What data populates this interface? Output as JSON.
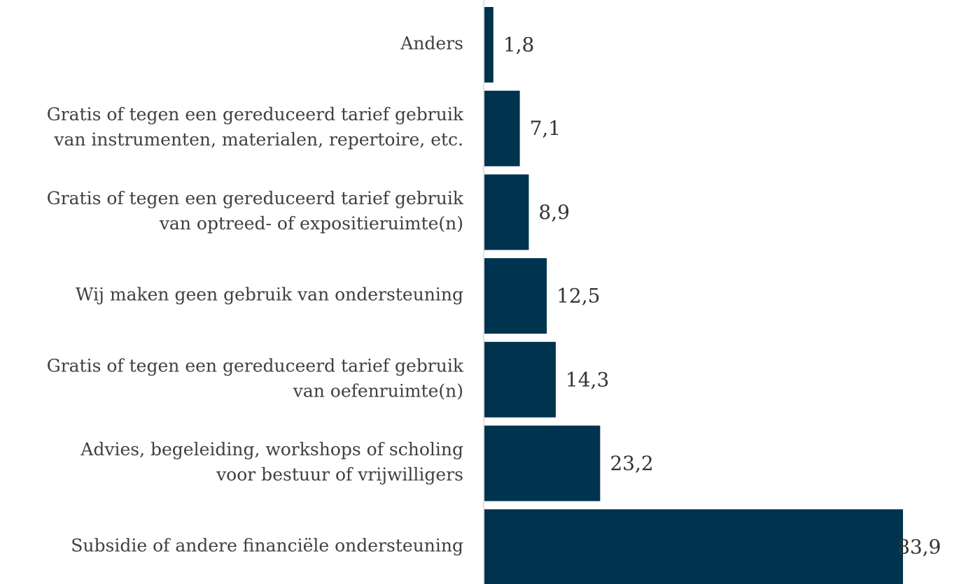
{
  "chart_data": {
    "type": "barh",
    "categories": [
      [
        "Anders"
      ],
      [
        "Gratis of tegen een gereduceerd tarief gebruik",
        "van instrumenten, materialen, repertoire, etc."
      ],
      [
        "Gratis of tegen een gereduceerd tarief gebruik",
        "van optreed- of expositieruimte(n)"
      ],
      [
        "Wij maken geen gebruik van ondersteuning"
      ],
      [
        "Gratis of tegen een gereduceerd tarief gebruik",
        "van oefenruimte(n)"
      ],
      [
        "Advies, begeleiding, workshops of scholing",
        "voor bestuur of vrijwilligers"
      ],
      [
        "Subsidie of andere financiële ondersteuning"
      ]
    ],
    "values": [
      1.8,
      7.1,
      8.9,
      12.5,
      14.3,
      23.2,
      83.9
    ],
    "value_labels": [
      "1,8",
      "7,1",
      "8,9",
      "12,5",
      "14,3",
      "23,2",
      "83,9"
    ],
    "color": "#00334e"
  }
}
